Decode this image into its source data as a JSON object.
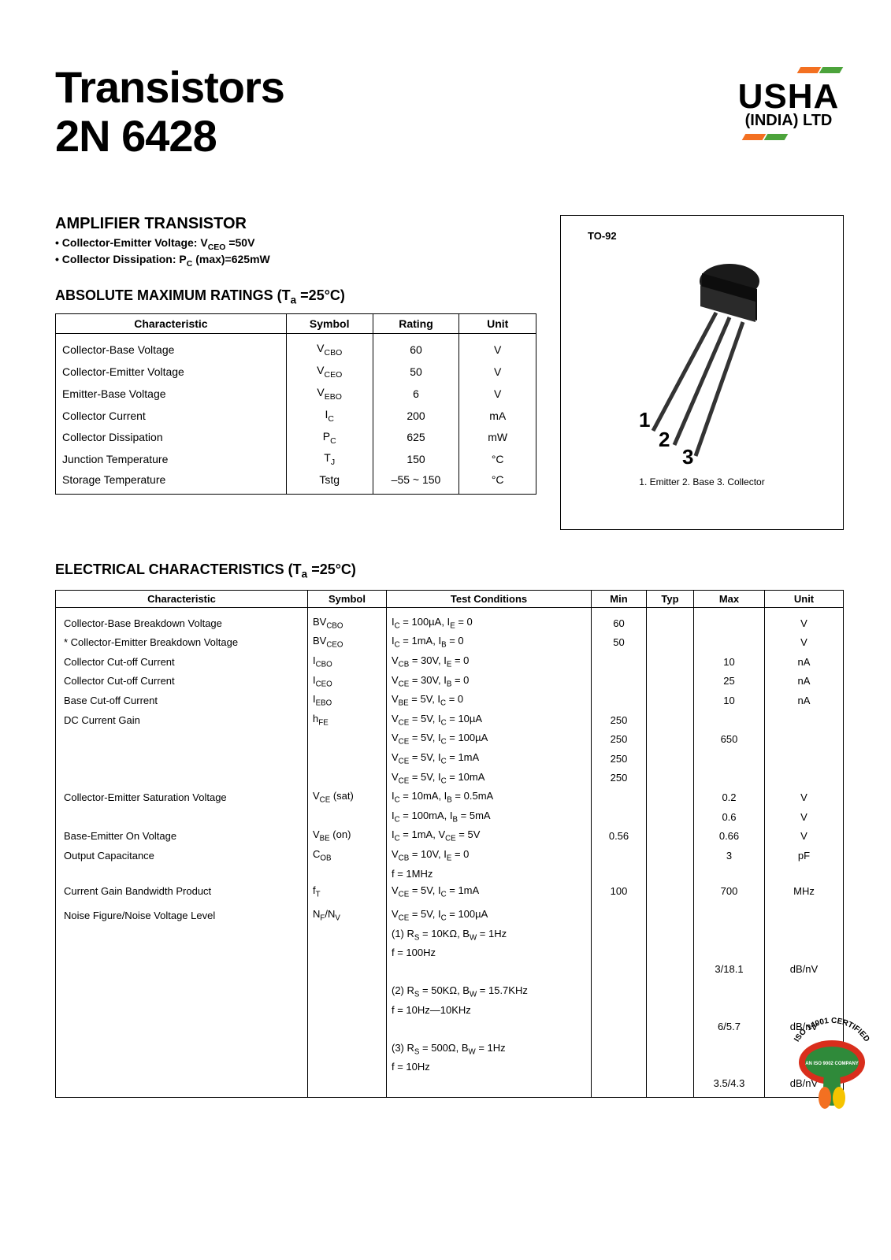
{
  "header": {
    "title_line1": "Transistors",
    "title_line2": "2N 6428",
    "logo_name": "USHA",
    "logo_sub": "(INDIA) LTD",
    "logo_colors": {
      "orange": "#f37021",
      "green": "#4ca33b"
    }
  },
  "amplifier": {
    "heading": "AMPLIFIER TRANSISTOR",
    "bullets": [
      "Collector-Emitter Voltage: V_CEO = 50V",
      "Collector Dissipation: P_C (max) = 625mW"
    ]
  },
  "abs_max": {
    "heading": "ABSOLUTE MAXIMUM RATINGS (Ta = 25°C)",
    "columns": [
      "Characteristic",
      "Symbol",
      "Rating",
      "Unit"
    ],
    "rows": [
      {
        "char": "Collector-Base Voltage",
        "sym": "V_CBO",
        "rating": "60",
        "unit": "V"
      },
      {
        "char": "Collector-Emitter Voltage",
        "sym": "V_CEO",
        "rating": "50",
        "unit": "V"
      },
      {
        "char": "Emitter-Base Voltage",
        "sym": "V_EBO",
        "rating": "6",
        "unit": "V"
      },
      {
        "char": "Collector Current",
        "sym": "I_C",
        "rating": "200",
        "unit": "mA"
      },
      {
        "char": "Collector Dissipation",
        "sym": "P_C",
        "rating": "625",
        "unit": "mW"
      },
      {
        "char": "Junction Temperature",
        "sym": "T_J",
        "rating": "150",
        "unit": "°C"
      },
      {
        "char": "Storage Temperature",
        "sym": "Tstg",
        "rating": "–55 ~ 150",
        "unit": "°C"
      }
    ]
  },
  "package": {
    "label": "TO-92",
    "pins": [
      "1",
      "2",
      "3"
    ],
    "pin_desc": "1. Emitter 2. Base 3. Collector"
  },
  "elec": {
    "heading": "ELECTRICAL CHARACTERISTICS (Ta = 25°C)",
    "columns": [
      "Characteristic",
      "Symbol",
      "Test Conditions",
      "Min",
      "Typ",
      "Max",
      "Unit"
    ],
    "rows": [
      {
        "char": "Collector-Base Breakdown Voltage",
        "sym": "BV_CBO",
        "cond": "I_C = 100µA, I_E = 0",
        "min": "60",
        "typ": "",
        "max": "",
        "unit": "V"
      },
      {
        "char": "* Collector-Emitter Breakdown Voltage",
        "sym": "BV_CEO",
        "cond": "I_C = 1mA, I_B = 0",
        "min": "50",
        "typ": "",
        "max": "",
        "unit": "V"
      },
      {
        "char": "Collector Cut-off Current",
        "sym": "I_CBO",
        "cond": "V_CB = 30V, I_E = 0",
        "min": "",
        "typ": "",
        "max": "10",
        "unit": "nA"
      },
      {
        "char": "Collector Cut-off Current",
        "sym": "I_CEO",
        "cond": "V_CE = 30V, I_B = 0",
        "min": "",
        "typ": "",
        "max": "25",
        "unit": "nA"
      },
      {
        "char": "Base Cut-off Current",
        "sym": "I_EBO",
        "cond": "V_BE = 5V, I_C = 0",
        "min": "",
        "typ": "",
        "max": "10",
        "unit": "nA"
      },
      {
        "char": "DC Current Gain",
        "sym": "h_FE",
        "cond": "V_CE = 5V, I_C = 10µA",
        "min": "250",
        "typ": "",
        "max": "",
        "unit": ""
      },
      {
        "char": "",
        "sym": "",
        "cond": "V_CE = 5V, I_C = 100µA",
        "min": "250",
        "typ": "",
        "max": "650",
        "unit": ""
      },
      {
        "char": "",
        "sym": "",
        "cond": "V_CE = 5V, I_C = 1mA",
        "min": "250",
        "typ": "",
        "max": "",
        "unit": ""
      },
      {
        "char": "",
        "sym": "",
        "cond": "V_CE = 5V, I_C = 10mA",
        "min": "250",
        "typ": "",
        "max": "",
        "unit": ""
      },
      {
        "char": "Collector-Emitter Saturation Voltage",
        "sym": "V_CE (sat)",
        "cond": "I_C = 10mA, I_B = 0.5mA",
        "min": "",
        "typ": "",
        "max": "0.2",
        "unit": "V"
      },
      {
        "char": "",
        "sym": "",
        "cond": "I_C = 100mA, I_B = 5mA",
        "min": "",
        "typ": "",
        "max": "0.6",
        "unit": "V"
      },
      {
        "char": "Base-Emitter On Voltage",
        "sym": "V_BE (on)",
        "cond": "I_C = 1mA, V_CE = 5V",
        "min": "0.56",
        "typ": "",
        "max": "0.66",
        "unit": "V"
      },
      {
        "char": "Output Capacitance",
        "sym": "C_OB",
        "cond": "V_CB = 10V, I_E = 0",
        "min": "",
        "typ": "",
        "max": "3",
        "unit": "pF"
      },
      {
        "char": "",
        "sym": "",
        "cond": "f = 1MHz",
        "min": "",
        "typ": "",
        "max": "",
        "unit": ""
      },
      {
        "char": "Current Gain Bandwidth Product",
        "sym": "f_T",
        "cond": "V_CE = 5V, I_C = 1mA",
        "min": "100",
        "typ": "",
        "max": "700",
        "unit": "MHz"
      },
      {
        "char": "",
        "sym": "",
        "cond": "",
        "min": "",
        "typ": "",
        "max": "",
        "unit": ""
      },
      {
        "char": "Noise Figure/Noise Voltage Level",
        "sym": "N_F/N_V",
        "cond": "V_CE = 5V, I_C = 100µA",
        "min": "",
        "typ": "",
        "max": "",
        "unit": ""
      },
      {
        "char": "",
        "sym": "",
        "cond": "(1) R_S = 10KΩ, B_W = 1Hz",
        "min": "",
        "typ": "",
        "max": "",
        "unit": ""
      },
      {
        "char": "",
        "sym": "",
        "cond": "f = 100Hz",
        "min": "",
        "typ": "",
        "max": "",
        "unit": ""
      },
      {
        "char": "",
        "sym": "",
        "cond": "",
        "min": "",
        "typ": "",
        "max": "3/18.1",
        "unit": "dB/nV"
      },
      {
        "char": "",
        "sym": "",
        "cond": "",
        "min": "",
        "typ": "",
        "max": "",
        "unit": ""
      },
      {
        "char": "",
        "sym": "",
        "cond": "(2) R_S = 50KΩ, B_W = 15.7KHz",
        "min": "",
        "typ": "",
        "max": "",
        "unit": ""
      },
      {
        "char": "",
        "sym": "",
        "cond": "f = 10Hz—10KHz",
        "min": "",
        "typ": "",
        "max": "",
        "unit": ""
      },
      {
        "char": "",
        "sym": "",
        "cond": "",
        "min": "",
        "typ": "",
        "max": "6/5.7",
        "unit": "dB/nV"
      },
      {
        "char": "",
        "sym": "",
        "cond": "",
        "min": "",
        "typ": "",
        "max": "",
        "unit": ""
      },
      {
        "char": "",
        "sym": "",
        "cond": "(3) R_S = 500Ω, B_W = 1Hz",
        "min": "",
        "typ": "",
        "max": "",
        "unit": ""
      },
      {
        "char": "",
        "sym": "",
        "cond": "f = 10Hz",
        "min": "",
        "typ": "",
        "max": "",
        "unit": ""
      },
      {
        "char": "",
        "sym": "",
        "cond": "",
        "min": "",
        "typ": "",
        "max": "3.5/4.3",
        "unit": "dB/nV"
      }
    ]
  },
  "cert": {
    "top_text": "14001 CERTIFIED",
    "side_text": "ISO",
    "inner_text": "AN ISO 9002 COMPANY",
    "colors": {
      "red": "#d92e1c",
      "green": "#2f8a3a",
      "orange": "#f37021",
      "yellow": "#f6c400"
    }
  },
  "col_widths": {
    "abs_max": {
      "char": "48%",
      "sym": "18%",
      "rating": "18%",
      "unit": "16%"
    },
    "elec": {
      "char": "32%",
      "sym": "10%",
      "cond": "26%",
      "min": "7%",
      "typ": "6%",
      "max": "9%",
      "unit": "10%"
    }
  }
}
